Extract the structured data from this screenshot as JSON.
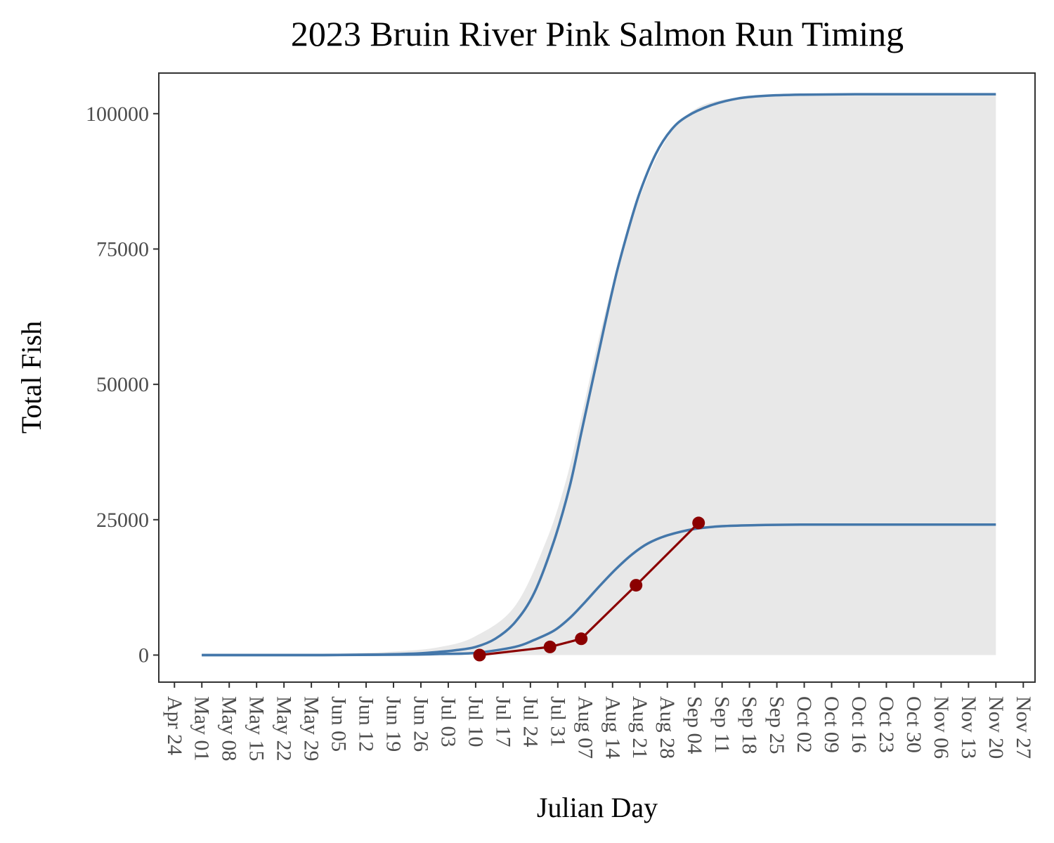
{
  "chart_data": {
    "type": "line",
    "title": "2023 Bruin River Pink Salmon Run Timing",
    "xlabel": "Julian Day",
    "ylabel": "Total Fish",
    "ylim": [
      -5000,
      107500
    ],
    "yticks": [
      0,
      25000,
      50000,
      75000,
      100000
    ],
    "ytick_labels": [
      "0",
      "25000",
      "50000",
      "75000",
      "100000"
    ],
    "xlim": [
      "2023-04-20",
      "2023-11-30"
    ],
    "xticks": [
      "2023-04-24",
      "2023-05-01",
      "2023-05-08",
      "2023-05-15",
      "2023-05-22",
      "2023-05-29",
      "2023-06-05",
      "2023-06-12",
      "2023-06-19",
      "2023-06-26",
      "2023-07-03",
      "2023-07-10",
      "2023-07-17",
      "2023-07-24",
      "2023-07-31",
      "2023-08-07",
      "2023-08-14",
      "2023-08-21",
      "2023-08-28",
      "2023-09-04",
      "2023-09-11",
      "2023-09-18",
      "2023-09-25",
      "2023-10-02",
      "2023-10-09",
      "2023-10-16",
      "2023-10-23",
      "2023-10-30",
      "2023-11-06",
      "2023-11-13",
      "2023-11-20",
      "2023-11-27"
    ],
    "xtick_labels": [
      "Apr 24",
      "May 01",
      "May 08",
      "May 15",
      "May 22",
      "May 29",
      "Jun 05",
      "Jun 12",
      "Jun 19",
      "Jun 26",
      "Jul 03",
      "Jul 10",
      "Jul 17",
      "Jul 24",
      "Jul 31",
      "Aug 07",
      "Aug 14",
      "Aug 21",
      "Aug 28",
      "Sep 04",
      "Sep 11",
      "Sep 18",
      "Sep 25",
      "Oct 02",
      "Oct 09",
      "Oct 16",
      "Oct 23",
      "Oct 30",
      "Nov 06",
      "Nov 13",
      "Nov 20",
      "Nov 27"
    ],
    "grid": false,
    "colors": {
      "upper_curve": "#4477aa",
      "lower_curve": "#4477aa",
      "ribbon": "#e8e8e8",
      "observed": "#8b0000",
      "frame": "#333333",
      "tick_label": "#4d4d4d"
    },
    "series": [
      {
        "x": [
          "2023-05-01",
          "2023-05-15",
          "2023-06-01",
          "2023-06-15",
          "2023-06-25",
          "2023-07-01",
          "2023-07-05",
          "2023-07-10",
          "2023-07-15",
          "2023-07-20",
          "2023-07-25",
          "2023-07-30",
          "2023-08-03",
          "2023-08-06",
          "2023-08-09",
          "2023-08-12",
          "2023-08-15",
          "2023-08-18",
          "2023-08-21",
          "2023-08-25",
          "2023-08-29",
          "2023-09-02",
          "2023-09-08",
          "2023-09-15",
          "2023-09-22",
          "2023-10-01",
          "2023-10-15",
          "2023-11-01",
          "2023-11-20"
        ],
        "y": [
          0,
          0,
          0,
          100,
          300,
          600,
          900,
          1500,
          3000,
          6000,
          11500,
          21000,
          31000,
          41000,
          51000,
          61000,
          70500,
          78500,
          85500,
          92500,
          97000,
          99500,
          101500,
          102800,
          103300,
          103500,
          103600,
          103600,
          103600
        ]
      },
      {
        "x": [
          "2023-05-01",
          "2023-05-15",
          "2023-06-01",
          "2023-06-15",
          "2023-06-25",
          "2023-07-01",
          "2023-07-10",
          "2023-07-20",
          "2023-07-25",
          "2023-07-30",
          "2023-08-03",
          "2023-08-07",
          "2023-08-11",
          "2023-08-15",
          "2023-08-19",
          "2023-08-23",
          "2023-08-28",
          "2023-09-04",
          "2023-09-11",
          "2023-09-20",
          "2023-10-01",
          "2023-10-20",
          "2023-11-20"
        ],
        "y": [
          0,
          0,
          0,
          50,
          100,
          200,
          400,
          1500,
          2800,
          4500,
          6800,
          9800,
          13000,
          16000,
          18600,
          20600,
          22100,
          23300,
          23800,
          24000,
          24100,
          24100,
          24100
        ]
      },
      {
        "x": [
          "2023-07-11",
          "2023-07-29",
          "2023-08-06",
          "2023-08-20",
          "2023-09-05"
        ],
        "y": [
          0,
          1500,
          3000,
          12900,
          24400
        ]
      }
    ],
    "ribbon": {
      "x": [
        "2023-05-01",
        "2023-06-01",
        "2023-06-20",
        "2023-07-01",
        "2023-07-10",
        "2023-07-20",
        "2023-07-28",
        "2023-08-02",
        "2023-08-06",
        "2023-08-10",
        "2023-08-14",
        "2023-08-18",
        "2023-08-22",
        "2023-08-26",
        "2023-08-30",
        "2023-09-04",
        "2023-09-10",
        "2023-09-20",
        "2023-10-05",
        "2023-11-20"
      ],
      "upper": [
        0,
        200,
        700,
        1500,
        3500,
        9000,
        21000,
        32000,
        44000,
        57000,
        68500,
        78500,
        86500,
        93000,
        97500,
        100800,
        102400,
        103300,
        103600,
        103600
      ]
    }
  }
}
